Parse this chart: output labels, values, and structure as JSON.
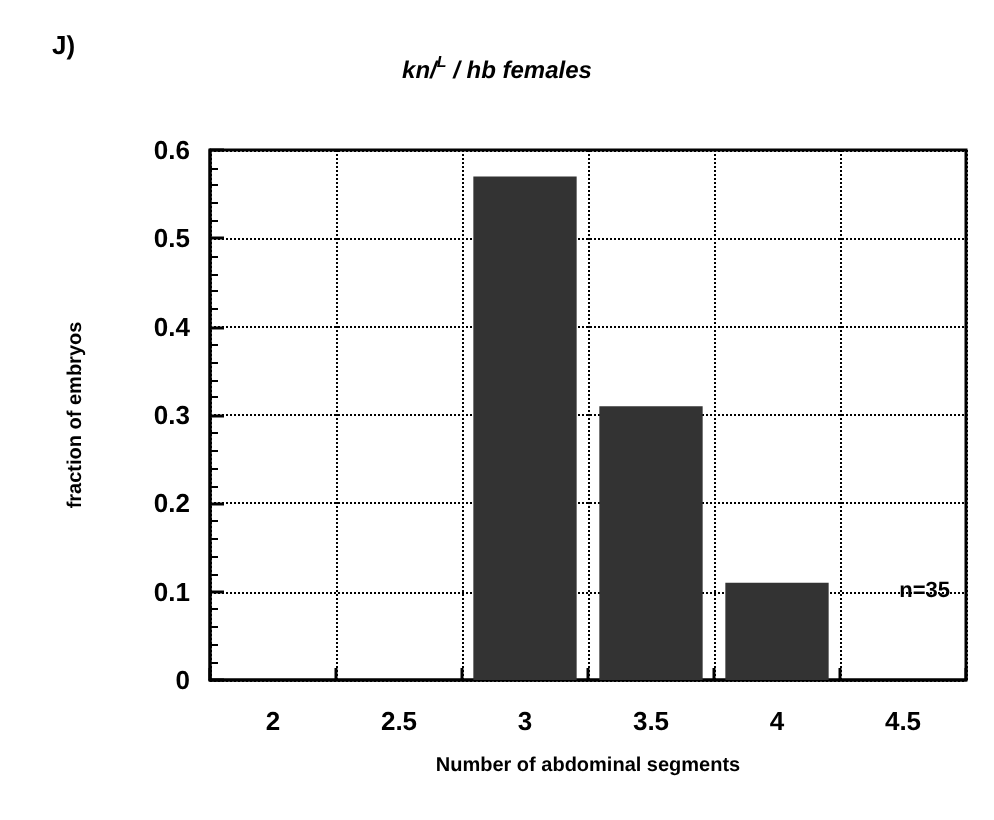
{
  "chart_data": {
    "type": "bar",
    "title": "kn/$^{L}$ / hb females",
    "xlabel": "Number of abdominal segments",
    "ylabel": "fraction of embryos",
    "categories": [
      "2",
      "2.5",
      "3",
      "3.5",
      "4",
      "4.5"
    ],
    "values": [
      0,
      0,
      0.57,
      0.31,
      0.11,
      0
    ],
    "color": "#333333",
    "ylim": [
      0,
      0.6
    ],
    "yticks": [
      0,
      0.1,
      0.2,
      0.3,
      0.4,
      0.5,
      0.6
    ],
    "grid": true,
    "annotations": [
      "J)",
      "n=35"
    ]
  }
}
